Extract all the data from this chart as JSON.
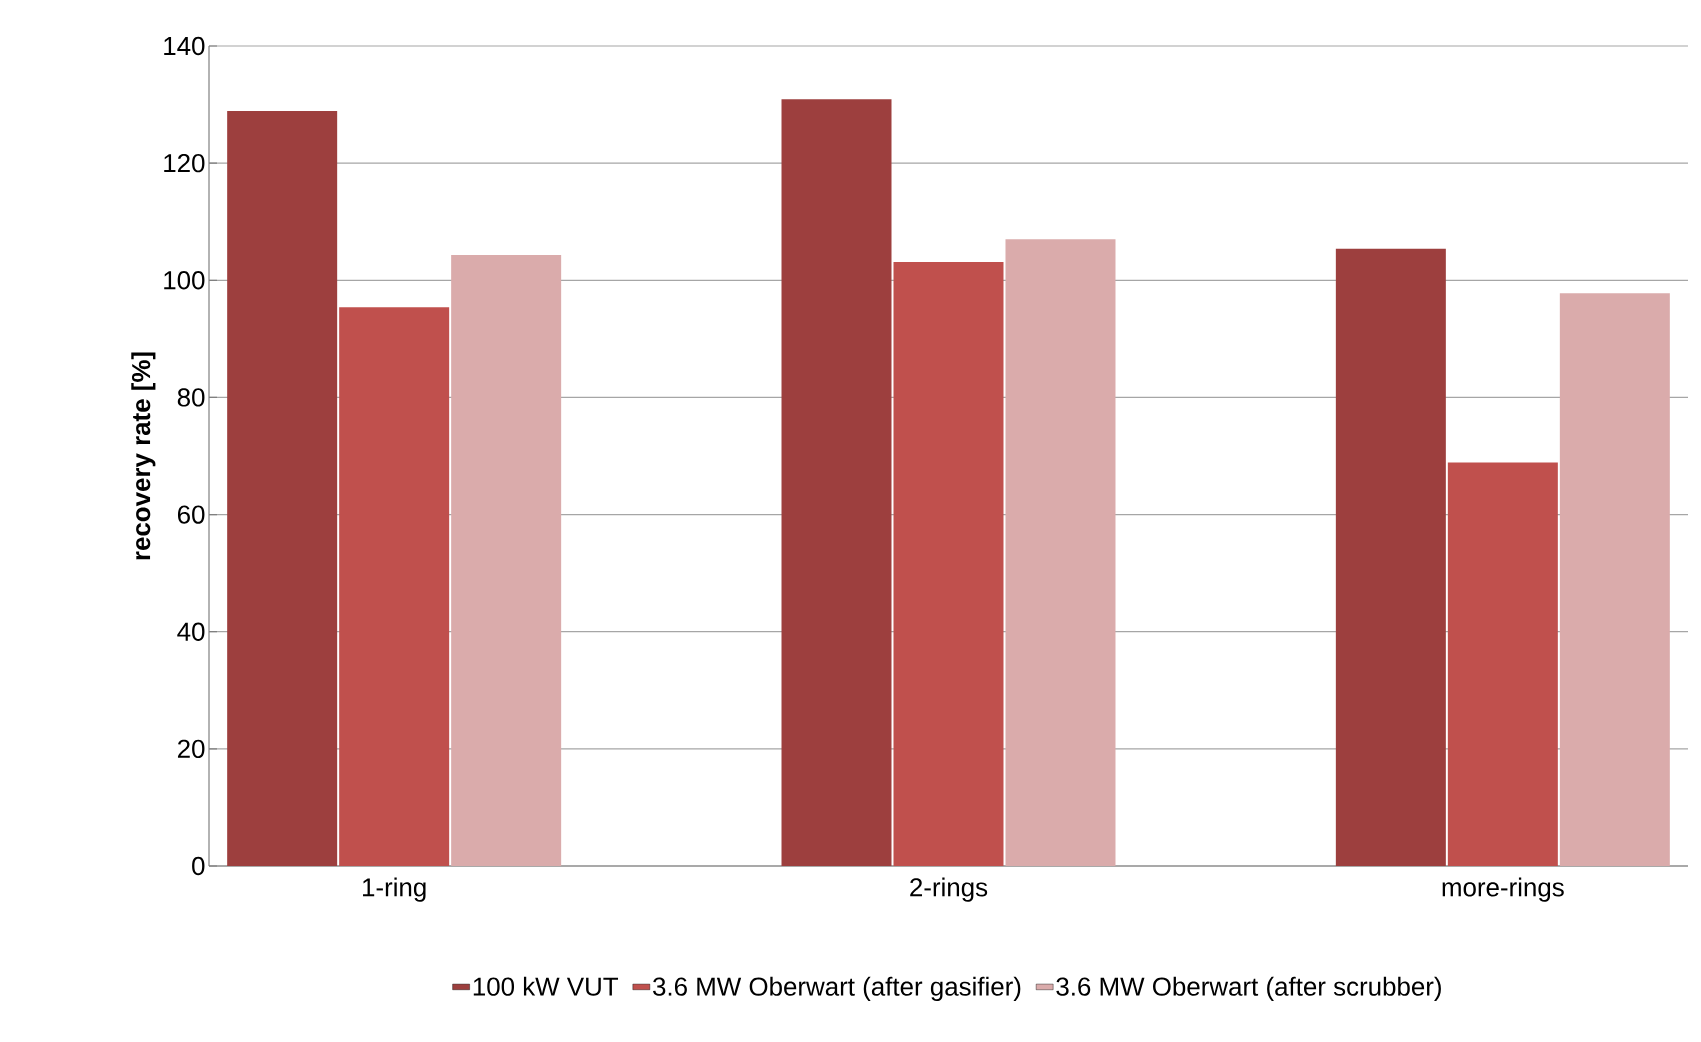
{
  "chart_data": {
    "type": "bar",
    "ylabel": "recovery rate [%]",
    "categories": [
      "1-ring",
      "2-rings",
      "more-rings"
    ],
    "series": [
      {
        "name": "100 kW VUT",
        "color": "#9d3f3e",
        "values": [
          128.9,
          130.9,
          105.4
        ]
      },
      {
        "name": "3.6 MW Oberwart (after gasifier)",
        "color": "#c0504d",
        "values": [
          95.4,
          103.1,
          68.9
        ]
      },
      {
        "name": "3.6 MW Oberwart (after scrubber)",
        "color": "#daabab",
        "values": [
          104.3,
          107.0,
          97.8
        ]
      }
    ],
    "ylim": [
      0,
      140
    ],
    "yticks": [
      0,
      20,
      40,
      60,
      80,
      100,
      120,
      140
    ],
    "grid": "y",
    "legend": "bottom"
  }
}
